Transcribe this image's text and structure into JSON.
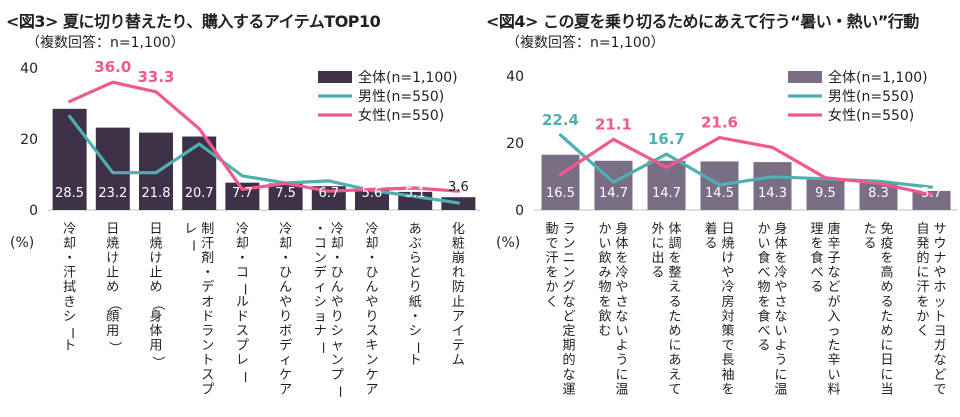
{
  "chart_data": [
    {
      "type": "bar",
      "title": "<図3> 夏に切り替えたり、購入するアイテムTOP10",
      "subtitle": "（複数回答：n=1,100）",
      "ylabel": "(%)",
      "ylim": [
        0,
        40
      ],
      "yticks": [
        "0",
        "20",
        "40"
      ],
      "grid": false,
      "legend_position": "top-right",
      "categories": [
        "冷却・汗拭きシート",
        "日焼け止め（顔用）",
        "日焼け止め（身体用）",
        "制汗剤・デオドラントスプレー",
        "冷却・コールドスプレー",
        "冷却・ひんやりボディケア",
        "冷却・ひんやりシャンプー・コンディショナー",
        "冷却・ひんやりスキンケア",
        "あぶらとり紙・シート",
        "化粧崩れ防止アイテム"
      ],
      "series": [
        {
          "name": "全体(n=1,100)",
          "kind": "bar",
          "color": "#3d3247",
          "values": [
            28.5,
            23.2,
            21.8,
            20.7,
            7.7,
            7.5,
            6.7,
            5.6,
            5.1,
            3.6
          ],
          "labels": [
            "28.5",
            "23.2",
            "21.8",
            "20.7",
            "7.7",
            "7.5",
            "6.7",
            "5.6",
            "5.1",
            "3.6"
          ]
        },
        {
          "name": "男性(n=550)",
          "kind": "line",
          "color": "#4fb0b0",
          "values": [
            26.4,
            10.5,
            10.5,
            18.6,
            9.6,
            7.6,
            8.2,
            5.5,
            3.8,
            2.0
          ]
        },
        {
          "name": "女性(n=550)",
          "kind": "line",
          "color": "#f0598f",
          "values": [
            30.6,
            36.0,
            33.3,
            22.9,
            5.8,
            7.5,
            5.3,
            5.8,
            6.2,
            5.3
          ]
        }
      ],
      "annotations": [
        {
          "text": "36.0",
          "series": "女性(n=550)",
          "index": 1
        },
        {
          "text": "33.3",
          "series": "女性(n=550)",
          "index": 2
        }
      ]
    },
    {
      "type": "bar",
      "title": "<図4> この夏を乗り切るためにあえて行う“暑い・熱い”行動",
      "subtitle": "（複数回答：n=1,100）",
      "ylabel": "(%)",
      "ylim": [
        0,
        40
      ],
      "yticks": [
        "0",
        "20",
        "40"
      ],
      "grid": false,
      "legend_position": "top-right",
      "categories": [
        "ランニングなど定期的な運動で汗をかく",
        "身体を冷やさないように温かい飲み物を飲む",
        "体調を整えるためにあえて外に出る",
        "日焼けや冷房対策で長袖を着る",
        "身体を冷やさないように温かい食べ物を食べる",
        "唐辛子などが入った辛い料理を食べる",
        "免疫を高めるために日に当たる",
        "サウナやホットヨガなどで自発的に汗をかく"
      ],
      "series": [
        {
          "name": "全体(n=1,100)",
          "kind": "bar",
          "color": "#7a6e85",
          "values": [
            16.5,
            14.7,
            14.7,
            14.5,
            14.3,
            9.5,
            8.3,
            5.7
          ],
          "labels": [
            "16.5",
            "14.7",
            "14.7",
            "14.5",
            "14.3",
            "9.5",
            "8.3",
            "5.7"
          ]
        },
        {
          "name": "男性(n=550)",
          "kind": "line",
          "color": "#4fb0b0",
          "values": [
            22.4,
            8.3,
            16.7,
            7.5,
            9.9,
            9.3,
            8.6,
            6.8
          ]
        },
        {
          "name": "女性(n=550)",
          "kind": "line",
          "color": "#f0598f",
          "values": [
            10.6,
            21.1,
            12.7,
            21.6,
            18.7,
            9.6,
            8.0,
            4.6
          ]
        }
      ],
      "annotations": [
        {
          "text": "22.4",
          "series": "男性(n=550)",
          "index": 0
        },
        {
          "text": "21.1",
          "series": "女性(n=550)",
          "index": 1
        },
        {
          "text": "16.7",
          "series": "男性(n=550)",
          "index": 2
        },
        {
          "text": "21.6",
          "series": "女性(n=550)",
          "index": 3
        }
      ]
    }
  ]
}
